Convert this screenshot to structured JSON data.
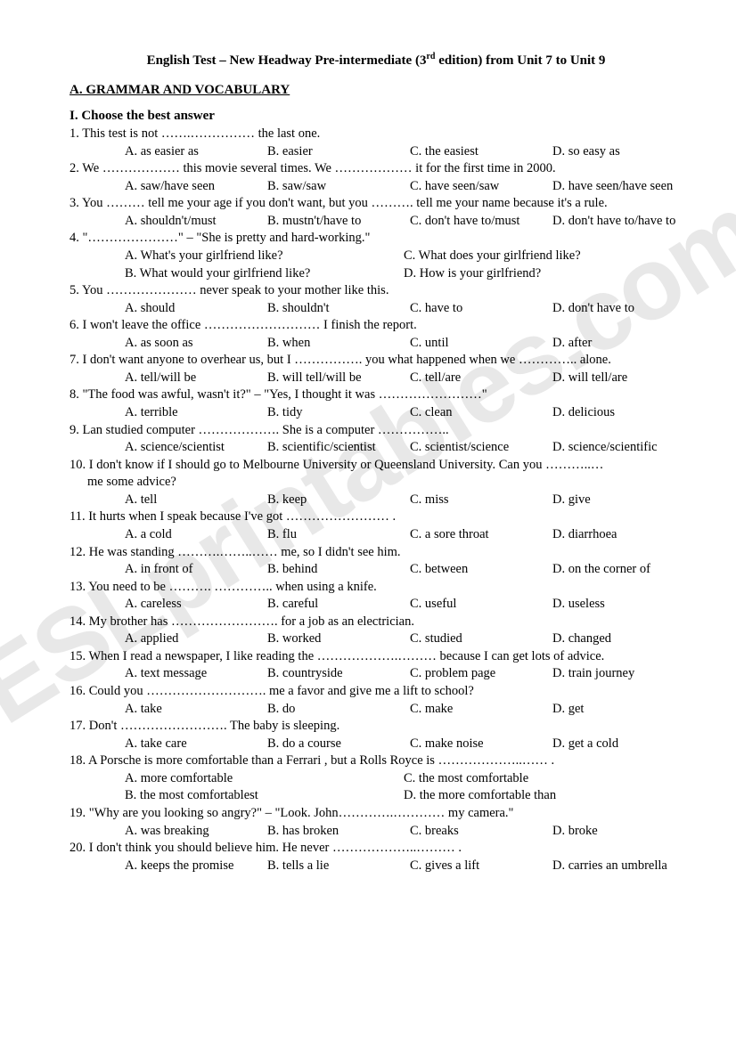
{
  "title_prefix": "English Test – New Headway Pre-intermediate (3",
  "title_sup": "rd",
  "title_suffix": " edition) from Unit 7 to Unit 9",
  "section": "A. GRAMMAR AND VOCABULARY",
  "subsection": "I. Choose the best answer",
  "watermark": "ESLprintables.com",
  "questions": [
    {
      "n": "1",
      "text": "1. This test is not …….…………… the last one.",
      "opts": [
        "A. as easier as",
        "B. easier",
        "C. the easiest",
        "D. so easy as"
      ]
    },
    {
      "n": "2",
      "text": "2. We ……………… this movie several times. We ……………… it for the first time in 2000.",
      "opts": [
        "A. saw/have seen",
        "B. saw/saw",
        "C. have seen/saw",
        "D. have seen/have seen"
      ]
    },
    {
      "n": "3",
      "text": "3. You ……… tell me your age if you don't want, but you ………. tell me your name because it's a rule.",
      "opts": [
        "A. shouldn't/must",
        "B. mustn't/have to",
        "C. don't have to/must",
        "D. don't have to/have to"
      ]
    },
    {
      "n": "4",
      "text": "4. \"…………………\" – \"She is pretty and hard-working.\"",
      "two_col": true,
      "opts": [
        "A. What's your girlfriend like?",
        "C. What does your girlfriend like?",
        "B. What would your girlfriend like?",
        "D. How is your girlfriend?"
      ]
    },
    {
      "n": "5",
      "text": "5. You ………………… never speak to your mother like this.",
      "opts": [
        "A. should",
        "B. shouldn't",
        "C. have to",
        "D. don't have to"
      ]
    },
    {
      "n": "6",
      "text": "6. I won't leave the office ……………………… I finish the report.",
      "opts": [
        "A. as soon as",
        "B. when",
        "C. until",
        "D. after"
      ]
    },
    {
      "n": "7",
      "text": "7. I don't want anyone to overhear us, but I ……………. you what happened when we ………….. alone.",
      "opts": [
        "A. tell/will be",
        "B. will tell/will be",
        "C. tell/are",
        "D. will tell/are"
      ]
    },
    {
      "n": "8",
      "text": "8. \"The food was awful, wasn't it?\" – \"Yes, I thought it was ……………………\"",
      "opts": [
        "A. terrible",
        "B. tidy",
        "C. clean",
        "D. delicious"
      ]
    },
    {
      "n": "9",
      "text": "9. Lan studied computer ………………. She is a computer ……………..",
      "opts": [
        "A. science/scientist",
        "B. scientific/scientist",
        "C. scientist/science",
        "D. science/scientific"
      ]
    },
    {
      "n": "10",
      "text": "10. I don't know if I should go to Melbourne University or Queensland University. Can you ………..…",
      "text2": "me some advice?",
      "opts": [
        "A. tell",
        "B. keep",
        "C. miss",
        "D. give"
      ]
    },
    {
      "n": "11",
      "text": "11. It hurts when I speak because I've got …………………… .",
      "opts": [
        "A. a cold",
        "B. flu",
        "C. a sore throat",
        "D. diarrhoea"
      ]
    },
    {
      "n": "12",
      "text": "12. He was standing ……….……..…… me, so I didn't see him.",
      "opts": [
        "A. in front of",
        "B. behind",
        "C. between",
        "D. on the corner of"
      ]
    },
    {
      "n": "13",
      "text": "13. You need to be ………. ………….. when using a knife.",
      "opts": [
        "A. careless",
        "B. careful",
        "C. useful",
        "D. useless"
      ]
    },
    {
      "n": "14",
      "text": "14. My brother has ……………………. for a job as an electrician.",
      "opts": [
        "A. applied",
        "B. worked",
        "C. studied",
        "D. changed"
      ]
    },
    {
      "n": "15",
      "text": "15. When I read a newspaper, I like reading the ……………….……… because I can get lots of advice.",
      "opts": [
        "A. text message",
        "B. countryside",
        "C. problem page",
        "D. train journey"
      ]
    },
    {
      "n": "16",
      "text": "16. Could you ………………………. me a favor and give me a lift to school?",
      "opts": [
        "A. take",
        "B. do",
        "C. make",
        "D. get"
      ]
    },
    {
      "n": "17",
      "text": "17. Don't ……………………. The baby is sleeping.",
      "opts": [
        "A. take care",
        "B. do a course",
        "C. make noise",
        "D. get a cold"
      ]
    },
    {
      "n": "18",
      "text": "18. A Porsche is more comfortable than a Ferrari , but a Rolls Royce is ………………..…… .",
      "two_col": true,
      "opts": [
        "A. more comfortable",
        "C. the most comfortable",
        "B. the most comfortablest",
        "D. the more comfortable than"
      ]
    },
    {
      "n": "19",
      "text": "19. \"Why are you looking so angry?\" – \"Look. John………….………… my camera.\"",
      "opts": [
        "A. was breaking",
        "B. has broken",
        "C. breaks",
        "D. broke"
      ]
    },
    {
      "n": "20",
      "text": "20. I don't think you should believe him. He never ………………..……… .",
      "opts": [
        "A. keeps the promise",
        "B. tells a lie",
        "C. gives a lift",
        "D. carries an umbrella"
      ]
    }
  ]
}
